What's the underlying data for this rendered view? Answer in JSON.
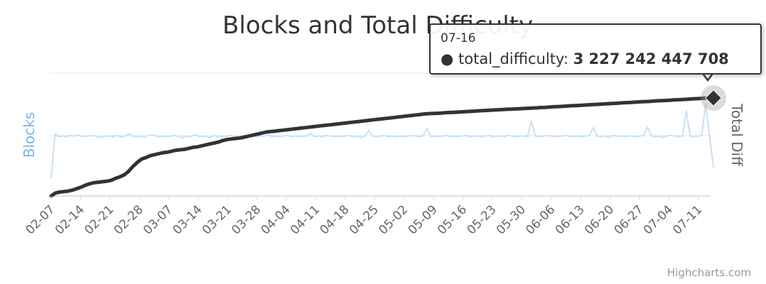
{
  "chart_data": {
    "type": "line",
    "title": "Blocks and Total Difficulty",
    "x_tick_labels": [
      "02-07",
      "02-14",
      "02-21",
      "02-28",
      "03-07",
      "03-14",
      "03-21",
      "03-28",
      "04-04",
      "04-11",
      "04-18",
      "04-25",
      "05-02",
      "05-09",
      "05-16",
      "05-23",
      "05-30",
      "06-06",
      "06-13",
      "06-20",
      "06-27",
      "07-04",
      "07-11"
    ],
    "y_axis_left_title": "Blocks",
    "y_axis_right_title": "Total Diff",
    "legend": "none",
    "grid": true,
    "series": [
      {
        "name": "blocks",
        "axis": "left",
        "color": "#c9e1f6",
        "values": [
          0.25,
          0.87,
          0.83,
          0.84,
          0.83,
          0.85,
          0.84,
          0.86,
          0.83,
          0.84,
          0.84,
          0.85,
          0.83,
          0.82,
          0.84,
          0.84,
          0.83,
          0.85,
          0.83,
          0.84,
          0.87,
          0.84,
          0.83,
          0.84,
          0.82,
          0.85,
          0.86,
          0.84,
          0.83,
          0.84,
          0.83,
          0.84,
          0.85,
          0.83,
          0.82,
          0.84,
          0.83,
          0.86,
          0.84,
          0.83,
          0.84,
          0.82,
          0.85,
          0.83,
          0.84,
          0.83,
          0.85,
          0.84,
          0.83,
          0.84,
          0.85,
          0.83,
          0.84,
          0.83,
          0.84,
          0.84,
          0.86,
          0.83,
          0.84,
          0.83,
          0.84,
          0.85,
          0.83,
          0.84,
          0.83,
          0.84,
          0.84,
          0.88,
          0.83,
          0.84,
          0.83,
          0.85,
          0.84,
          0.83,
          0.84,
          0.83,
          0.84,
          0.85,
          0.83,
          0.84,
          0.82,
          0.84,
          0.92,
          0.84,
          0.83,
          0.84,
          0.85,
          0.83,
          0.84,
          0.83,
          0.84,
          0.83,
          0.84,
          0.85,
          0.84,
          0.83,
          0.84,
          0.95,
          0.83,
          0.84,
          0.83,
          0.84,
          0.85,
          0.83,
          0.84,
          0.83,
          0.84,
          0.85,
          0.83,
          0.84,
          0.84,
          0.83,
          0.84,
          0.85,
          0.83,
          0.84,
          0.84,
          0.83,
          0.85,
          0.84,
          0.83,
          0.84,
          0.84,
          0.83,
          1.05,
          0.84,
          0.83,
          0.84,
          0.85,
          0.84,
          0.83,
          0.84,
          0.84,
          0.85,
          0.83,
          0.84,
          0.84,
          0.83,
          0.84,
          0.85,
          0.96,
          0.84,
          0.83,
          0.84,
          0.82,
          0.85,
          0.84,
          0.84,
          0.83,
          0.84,
          0.84,
          0.83,
          0.84,
          0.85,
          0.97,
          0.84,
          0.83,
          0.84,
          0.82,
          0.84,
          0.85,
          0.84,
          0.83,
          0.84,
          1.2,
          0.84,
          0.83,
          0.84,
          0.85,
          1.3,
          0.85,
          0.4
        ]
      },
      {
        "name": "total_difficulty",
        "axis": "right",
        "color": "#333333",
        "values": [
          0.0,
          0.03,
          0.04,
          0.045,
          0.05,
          0.06,
          0.075,
          0.09,
          0.11,
          0.125,
          0.135,
          0.14,
          0.145,
          0.15,
          0.16,
          0.18,
          0.195,
          0.215,
          0.25,
          0.3,
          0.34,
          0.375,
          0.39,
          0.41,
          0.42,
          0.43,
          0.44,
          0.445,
          0.455,
          0.465,
          0.47,
          0.475,
          0.485,
          0.495,
          0.5,
          0.51,
          0.52,
          0.53,
          0.54,
          0.55,
          0.565,
          0.575,
          0.58,
          0.585,
          0.59,
          0.6,
          0.61,
          0.62,
          0.63,
          0.64,
          0.65,
          0.655,
          0.66,
          0.665,
          0.67,
          0.675,
          0.68,
          0.685,
          0.69,
          0.695,
          0.7,
          0.705,
          0.71,
          0.715,
          0.72,
          0.725,
          0.73,
          0.735,
          0.74,
          0.745,
          0.75,
          0.755,
          0.76,
          0.765,
          0.77,
          0.775,
          0.78,
          0.785,
          0.79,
          0.795,
          0.8,
          0.805,
          0.81,
          0.815,
          0.82,
          0.825,
          0.83,
          0.835,
          0.838,
          0.84,
          0.842,
          0.845,
          0.848,
          0.85,
          0.852,
          0.855,
          0.857,
          0.86,
          0.862,
          0.865,
          0.868,
          0.87,
          0.872,
          0.875,
          0.877,
          0.88,
          0.882,
          0.884,
          0.886,
          0.888,
          0.89,
          0.892,
          0.895,
          0.897,
          0.9,
          0.902,
          0.905,
          0.908,
          0.91,
          0.912,
          0.915,
          0.918,
          0.92,
          0.922,
          0.925,
          0.928,
          0.93,
          0.932,
          0.935,
          0.937,
          0.94,
          0.942,
          0.945,
          0.948,
          0.95,
          0.952,
          0.955,
          0.958,
          0.96,
          0.962,
          0.965,
          0.968,
          0.97,
          0.972,
          0.975,
          0.978,
          0.98,
          0.982,
          0.985,
          0.988,
          0.99,
          0.992,
          0.995,
          0.997,
          1.0
        ]
      }
    ],
    "tooltip": {
      "date": "07-16",
      "series_label": "total_difficulty:",
      "value": "3 227 242 447 708"
    },
    "credits": "Highcharts.com"
  }
}
